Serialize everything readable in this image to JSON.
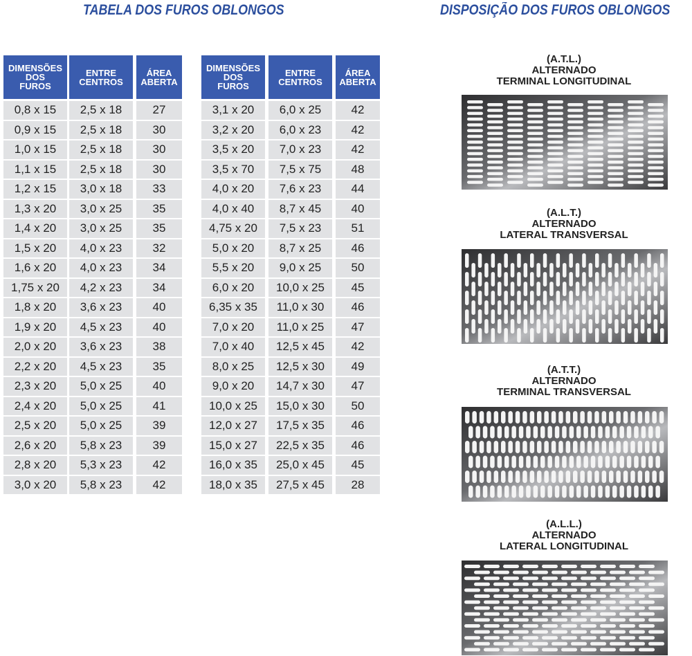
{
  "titles": {
    "table": "TABELA DOS FUROS OBLONGOS",
    "layout": "DISPOSIÇÃO DOS FUROS OBLONGOS"
  },
  "tables": [
    {
      "headers": [
        [
          "DIMENSÕES",
          "DOS",
          "FUROS"
        ],
        [
          "ENTRE",
          "CENTROS"
        ],
        [
          "ÁREA",
          "ABERTA"
        ]
      ],
      "rows": [
        [
          "0,8 x 15",
          "2,5 x 18",
          27
        ],
        [
          "0,9 x 15",
          "2,5 x 18",
          30
        ],
        [
          "1,0 x 15",
          "2,5 x 18",
          30
        ],
        [
          "1,1 x 15",
          "2,5 x 18",
          30
        ],
        [
          "1,2 x 15",
          "3,0 x 18",
          33
        ],
        [
          "1,3 x 20",
          "3,0 x 25",
          35
        ],
        [
          "1,4 x 20",
          "3,0 x 25",
          35
        ],
        [
          "1,5 x 20",
          "4,0 x 23",
          32
        ],
        [
          "1,6 x 20",
          "4,0 x 23",
          34
        ],
        [
          "1,75 x 20",
          "4,2 x 23",
          34
        ],
        [
          "1,8 x 20",
          "3,6 x 23",
          40
        ],
        [
          "1,9 x 20",
          "4,5 x 23",
          40
        ],
        [
          "2,0 x 20",
          "3,6 x 23",
          38
        ],
        [
          "2,2 x 20",
          "4,5 x 23",
          35
        ],
        [
          "2,3 x 20",
          "5,0 x 25",
          40
        ],
        [
          "2,4 x 20",
          "5,0 x 25",
          41
        ],
        [
          "2,5 x 20",
          "5,0 x 25",
          39
        ],
        [
          "2,6 x 20",
          "5,8 x 23",
          39
        ],
        [
          "2,8 x 20",
          "5,3 x 23",
          42
        ],
        [
          "3,0 x 20",
          "5,8 x 23",
          42
        ]
      ]
    },
    {
      "headers": [
        [
          "DIMENSÕES",
          "DOS",
          "FUROS"
        ],
        [
          "ENTRE",
          "CENTROS"
        ],
        [
          "ÁREA",
          "ABERTA"
        ]
      ],
      "rows": [
        [
          "3,1 x 20",
          "6,0 x 25",
          42
        ],
        [
          "3,2 x 20",
          "6,0 x 23",
          42
        ],
        [
          "3,5 x 20",
          "7,0 x 23",
          42
        ],
        [
          "3,5 x 70",
          "7,5 x 75",
          48
        ],
        [
          "4,0 x 20",
          "7,6 x 23",
          44
        ],
        [
          "4,0 x 40",
          "8,7 x 45",
          40
        ],
        [
          "4,75 x 20",
          "7,5 x 23",
          51
        ],
        [
          "5,0 x 20",
          "8,7 x 25",
          46
        ],
        [
          "5,5 x 20",
          "9,0 x 25",
          50
        ],
        [
          "6,0 x 20",
          "10,0 x 25",
          45
        ],
        [
          "6,35 x 35",
          "11,0 x 30",
          46
        ],
        [
          "7,0 x 20",
          "11,0 x 25",
          47
        ],
        [
          "7,0 x 40",
          "12,5 x 45",
          42
        ],
        [
          "8,0 x 25",
          "12,5 x 30",
          49
        ],
        [
          "9,0 x 20",
          "14,7 x 30",
          47
        ],
        [
          "10,0 x 25",
          "15,0 x 30",
          50
        ],
        [
          "12,0 x 27",
          "17,5 x 35",
          46
        ],
        [
          "15,0 x 27",
          "22,5 x 35",
          46
        ],
        [
          "16,0 x 35",
          "25,0 x 45",
          45
        ],
        [
          "18,0 x 35",
          "27,5 x 45",
          28
        ]
      ]
    }
  ],
  "patterns": [
    {
      "code": "(A.T.L.)",
      "line1": "ALTERNADO",
      "line2": "TERMINAL LONGITUDINAL"
    },
    {
      "code": "(A.L.T.)",
      "line1": "ALTERNADO",
      "line2": "LATERAL TRANSVERSAL"
    },
    {
      "code": "(A.T.T.)",
      "line1": "ALTERNADO",
      "line2": "TERMINAL TRANSVERSAL"
    },
    {
      "code": "(A.L.L.)",
      "line1": "ALTERNADO",
      "line2": "LATERAL LONGITUDINAL"
    }
  ]
}
